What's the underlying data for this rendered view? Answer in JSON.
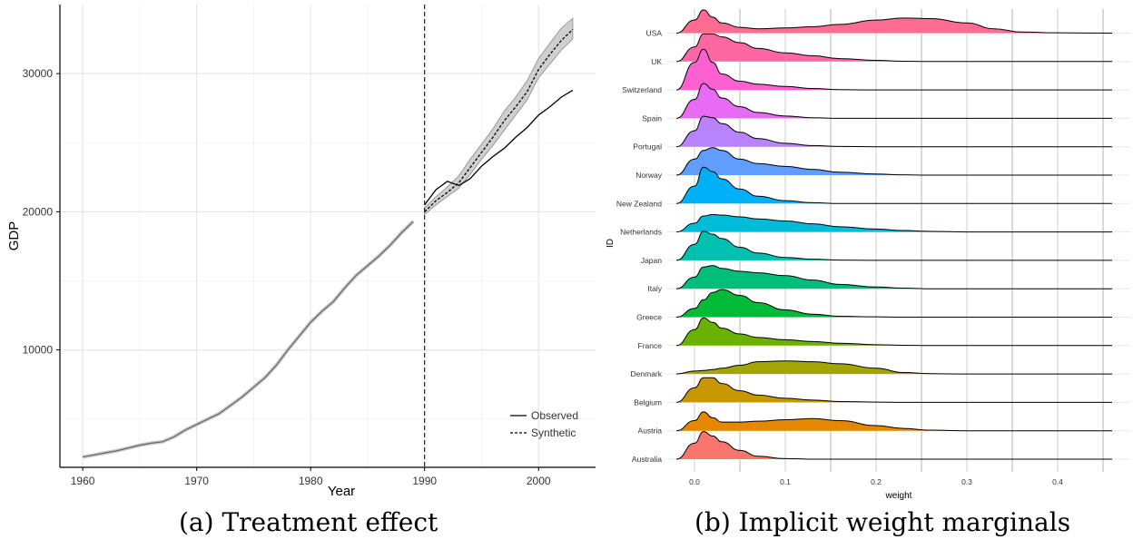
{
  "captions": {
    "a": "(a) Treatment effect",
    "b": "(b) Implicit weight marginals"
  },
  "chart_data": [
    {
      "type": "line",
      "xlabel": "Year",
      "ylabel": "GDP",
      "xlim": [
        1958,
        2005
      ],
      "ylim": [
        1500,
        35000
      ],
      "xticks": [
        "1960",
        "1970",
        "1980",
        "1990",
        "2000"
      ],
      "xtick_values": [
        1960,
        1970,
        1980,
        1990,
        2000
      ],
      "yticks": [
        "10000",
        "20000",
        "30000"
      ],
      "ytick_values": [
        10000,
        20000,
        30000
      ],
      "grid": true,
      "treatment_year": 1990,
      "legend_position": "bottom-right",
      "pre_period": {
        "x": [
          1960,
          1961,
          1962,
          1963,
          1964,
          1965,
          1966,
          1967,
          1968,
          1969,
          1970,
          1971,
          1972,
          1973,
          1974,
          1975,
          1976,
          1977,
          1978,
          1979,
          1980,
          1981,
          1982,
          1983,
          1984,
          1985,
          1986,
          1987,
          1988,
          1989
        ],
        "y": [
          2250,
          2400,
          2550,
          2700,
          2900,
          3100,
          3250,
          3350,
          3700,
          4200,
          4600,
          5000,
          5400,
          6000,
          6600,
          7300,
          8000,
          8900,
          10000,
          11000,
          12000,
          12800,
          13500,
          14500,
          15400,
          16100,
          16800,
          17600,
          18500,
          19300
        ]
      },
      "series": [
        {
          "name": "Observed",
          "x": [
            1990,
            1991,
            1992,
            1993,
            1994,
            1995,
            1996,
            1997,
            1998,
            1999,
            2000,
            2001,
            2002,
            2003
          ],
          "y": [
            20500,
            21600,
            22200,
            21900,
            22400,
            23300,
            24000,
            24600,
            25400,
            26100,
            27000,
            27600,
            28300,
            28800
          ]
        },
        {
          "name": "Synthetic",
          "x": [
            1990,
            1991,
            1992,
            1993,
            1994,
            1995,
            1996,
            1997,
            1998,
            1999,
            2000,
            2001,
            2002,
            2003
          ],
          "y": [
            20000,
            20800,
            21400,
            22100,
            23200,
            24300,
            25400,
            26600,
            27600,
            28700,
            30300,
            31400,
            32400,
            33200
          ],
          "band_low": [
            19800,
            20500,
            21100,
            21700,
            22700,
            23800,
            24800,
            25900,
            27000,
            28100,
            29700,
            30700,
            31700,
            32500
          ],
          "band_high": [
            20300,
            21100,
            21800,
            22600,
            23800,
            24900,
            26000,
            27300,
            28300,
            29500,
            31100,
            32200,
            33300,
            34000
          ]
        }
      ]
    },
    {
      "type": "ridgeline",
      "xlabel": "weight",
      "ylabel": "ID",
      "xlim": [
        -0.03,
        0.48
      ],
      "xticks": [
        "0.0",
        "0.1",
        "0.2",
        "0.3",
        "0.4"
      ],
      "xtick_values": [
        0.0,
        0.1,
        0.2,
        0.3,
        0.4
      ],
      "grid": true,
      "categories": [
        "Australia",
        "Austria",
        "Belgium",
        "Denmark",
        "France",
        "Greece",
        "Italy",
        "Japan",
        "Netherlands",
        "New Zealand",
        "Norway",
        "Portugal",
        "Spain",
        "Switzerland",
        "UK",
        "USA"
      ],
      "colors": [
        "#F8766D",
        "#E58700",
        "#C99800",
        "#A3A500",
        "#6BB100",
        "#00BA38",
        "#00BF7D",
        "#00C0AF",
        "#00BCD8",
        "#00B0F6",
        "#619CFF",
        "#B983FF",
        "#E76BF3",
        "#FD61D1",
        "#FF67A4",
        "#FF6C91"
      ],
      "density_x": [
        -0.02,
        0.0,
        0.01,
        0.02,
        0.03,
        0.05,
        0.07,
        0.1,
        0.13,
        0.16,
        0.2,
        0.23,
        0.26,
        0.3,
        0.33,
        0.36,
        0.4,
        0.46
      ],
      "densities": [
        [
          0,
          0.55,
          0.95,
          0.8,
          0.6,
          0.3,
          0.1,
          0.02,
          0,
          0,
          0,
          0,
          0,
          0,
          0,
          0,
          0,
          0
        ],
        [
          0,
          0.35,
          0.65,
          0.45,
          0.3,
          0.3,
          0.33,
          0.38,
          0.42,
          0.35,
          0.18,
          0.08,
          0.02,
          0,
          0,
          0,
          0,
          0
        ],
        [
          0,
          0.5,
          0.85,
          0.85,
          0.65,
          0.4,
          0.25,
          0.14,
          0.08,
          0.03,
          0.01,
          0,
          0,
          0,
          0,
          0,
          0,
          0
        ],
        [
          0,
          0.1,
          0.12,
          0.15,
          0.2,
          0.3,
          0.42,
          0.45,
          0.42,
          0.35,
          0.2,
          0.05,
          0.01,
          0,
          0,
          0,
          0,
          0
        ],
        [
          0,
          0.55,
          0.95,
          0.8,
          0.6,
          0.4,
          0.28,
          0.2,
          0.14,
          0.08,
          0.03,
          0.01,
          0,
          0,
          0,
          0,
          0,
          0
        ],
        [
          0,
          0.3,
          0.6,
          0.85,
          0.95,
          0.75,
          0.5,
          0.25,
          0.1,
          0.03,
          0.01,
          0,
          0,
          0,
          0,
          0,
          0,
          0
        ],
        [
          0,
          0.4,
          0.75,
          0.8,
          0.7,
          0.6,
          0.55,
          0.45,
          0.3,
          0.15,
          0.06,
          0.02,
          0,
          0,
          0,
          0,
          0,
          0
        ],
        [
          0,
          0.55,
          1.0,
          0.9,
          0.75,
          0.45,
          0.25,
          0.1,
          0.04,
          0.01,
          0,
          0,
          0,
          0,
          0,
          0,
          0,
          0
        ],
        [
          0,
          0.3,
          0.55,
          0.6,
          0.58,
          0.52,
          0.45,
          0.38,
          0.28,
          0.18,
          0.1,
          0.05,
          0.02,
          0,
          0,
          0,
          0,
          0
        ],
        [
          0,
          0.6,
          1.25,
          1.1,
          0.85,
          0.5,
          0.25,
          0.1,
          0.03,
          0,
          0,
          0,
          0,
          0,
          0,
          0,
          0,
          0
        ],
        [
          0,
          0.55,
          0.85,
          0.95,
          0.85,
          0.55,
          0.4,
          0.3,
          0.2,
          0.1,
          0.04,
          0.01,
          0,
          0,
          0,
          0,
          0,
          0
        ],
        [
          0,
          0.55,
          1.05,
          1.0,
          0.8,
          0.5,
          0.28,
          0.12,
          0.04,
          0.01,
          0,
          0,
          0,
          0,
          0,
          0,
          0,
          0
        ],
        [
          0,
          0.65,
          1.2,
          1.0,
          0.7,
          0.4,
          0.2,
          0.08,
          0.02,
          0,
          0,
          0,
          0,
          0,
          0,
          0,
          0,
          0
        ],
        [
          0,
          0.95,
          1.4,
          0.95,
          0.55,
          0.3,
          0.2,
          0.12,
          0.05,
          0.01,
          0,
          0,
          0,
          0,
          0,
          0,
          0,
          0
        ],
        [
          0,
          0.5,
          0.95,
          0.95,
          0.85,
          0.65,
          0.45,
          0.3,
          0.2,
          0.1,
          0.04,
          0.01,
          0,
          0,
          0,
          0,
          0,
          0
        ],
        [
          0,
          0.45,
          0.8,
          0.55,
          0.35,
          0.2,
          0.15,
          0.18,
          0.22,
          0.3,
          0.45,
          0.52,
          0.5,
          0.35,
          0.15,
          0.04,
          0.01,
          0
        ]
      ]
    }
  ]
}
